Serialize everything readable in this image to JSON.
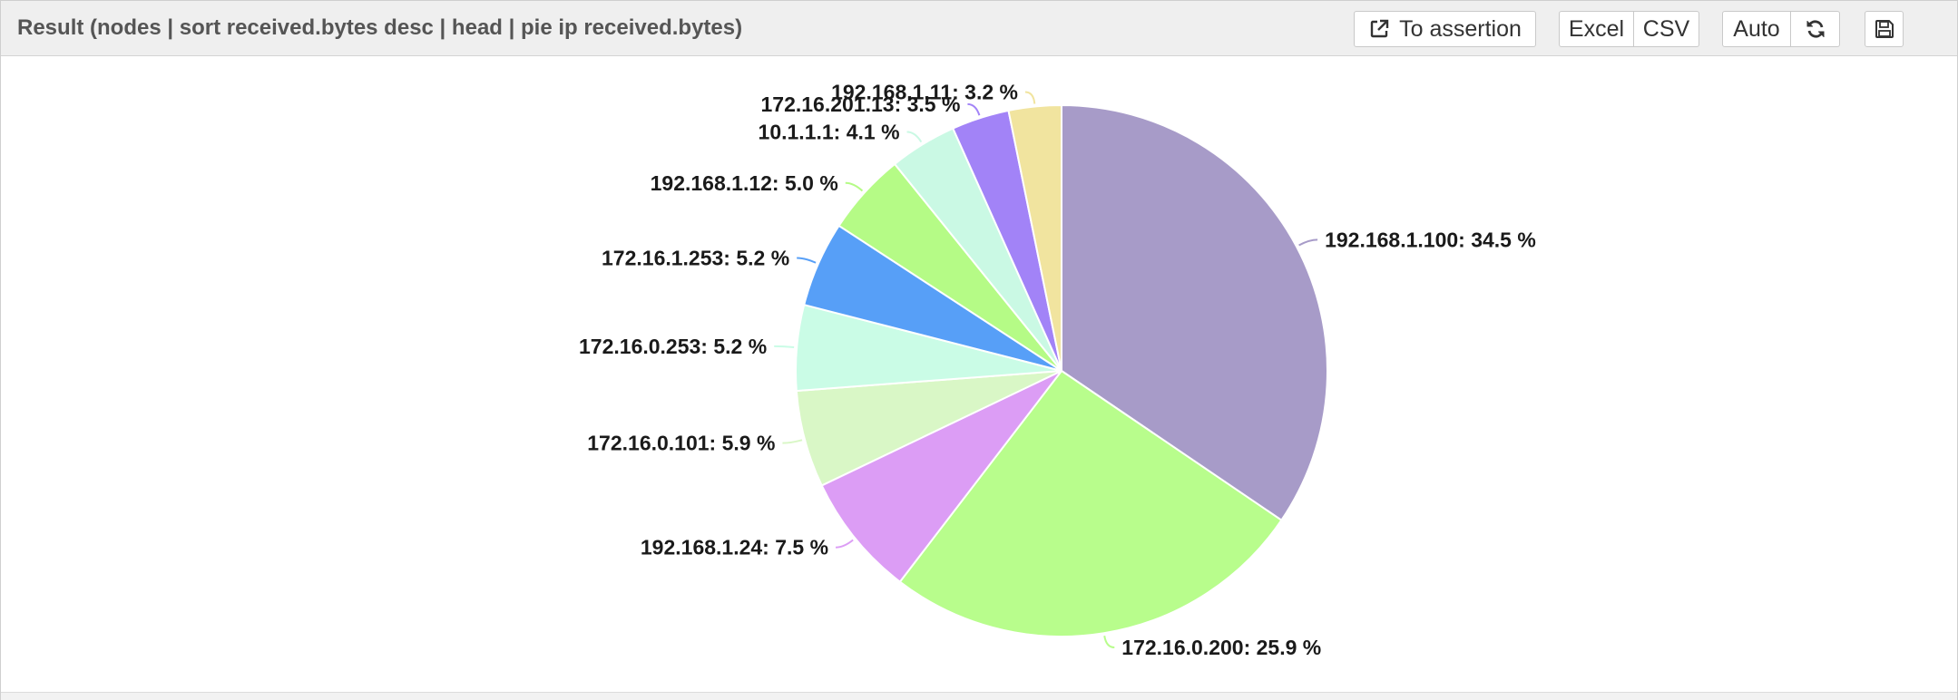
{
  "header": {
    "title": "Result (nodes | sort received.bytes desc | head | pie ip received.bytes)",
    "to_assertion_label": "To assertion",
    "excel_label": "Excel",
    "csv_label": "CSV",
    "auto_label": "Auto",
    "icons": [
      "external-link-icon",
      "refresh-icon",
      "save-icon"
    ]
  },
  "chart_data": {
    "type": "pie",
    "title": "",
    "label_format": "{name}: {pct} %",
    "slices": [
      {
        "name": "192.168.1.100",
        "pct": 34.5,
        "color": "#a79bc8"
      },
      {
        "name": "172.16.0.200",
        "pct": 25.9,
        "color": "#b8fd8c"
      },
      {
        "name": "192.168.1.24",
        "pct": 7.5,
        "color": "#dc9df5"
      },
      {
        "name": "172.16.0.101",
        "pct": 5.9,
        "color": "#d9f7c6"
      },
      {
        "name": "172.16.0.253",
        "pct": 5.2,
        "color": "#cafce6"
      },
      {
        "name": "172.16.1.253",
        "pct": 5.2,
        "color": "#579ff7"
      },
      {
        "name": "192.168.1.12",
        "pct": 5.0,
        "color": "#b5fb86"
      },
      {
        "name": "10.1.1.1",
        "pct": 4.1,
        "color": "#caf9e4"
      },
      {
        "name": "172.16.201.13",
        "pct": 3.5,
        "color": "#a283f7"
      },
      {
        "name": "192.168.1.11",
        "pct": 3.2,
        "color": "#f1e49f"
      }
    ]
  }
}
